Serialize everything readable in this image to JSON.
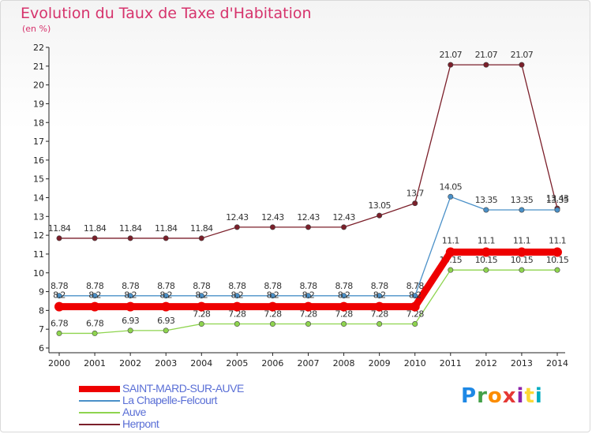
{
  "title": "Evolution du Taux de Taxe d'Habitation",
  "subtitle": "(en %)",
  "logo": {
    "text": "Proxiti",
    "colors": [
      "#1e88e5",
      "#43a047",
      "#fb8c00",
      "#e53935",
      "#8e24aa",
      "#fdd835",
      "#00acc1"
    ]
  },
  "chart_data": {
    "type": "line",
    "x": [
      2000,
      2001,
      2002,
      2003,
      2004,
      2005,
      2006,
      2007,
      2008,
      2009,
      2010,
      2011,
      2012,
      2013,
      2014
    ],
    "ylim": [
      6,
      22
    ],
    "yticks": [
      6,
      7,
      8,
      9,
      10,
      11,
      12,
      13,
      14,
      15,
      16,
      17,
      18,
      19,
      20,
      21,
      22
    ],
    "grid": false,
    "legend": "bottom-left",
    "series": [
      {
        "name": "Herpont",
        "color": "#7b1f2a",
        "width": 1.3,
        "values": [
          11.84,
          11.84,
          11.84,
          11.84,
          11.84,
          12.43,
          12.43,
          12.43,
          12.43,
          13.05,
          13.7,
          21.07,
          21.07,
          21.07,
          13.43
        ],
        "labels": [
          "11.84",
          "11.84",
          "11.84",
          "11.84",
          "11.84",
          "12.43",
          "12.43",
          "12.43",
          "12.43",
          "13.05",
          "13.7",
          "21.07",
          "21.07",
          "21.07",
          "13.43"
        ]
      },
      {
        "name": "La Chapelle-Felcourt",
        "color": "#4a90c8",
        "width": 1.3,
        "values": [
          8.78,
          8.78,
          8.78,
          8.78,
          8.78,
          8.78,
          8.78,
          8.78,
          8.78,
          8.78,
          8.78,
          14.05,
          13.35,
          13.35,
          13.35
        ],
        "labels": [
          "8.78",
          "8.78",
          "8.78",
          "8.78",
          "8.78",
          "8.78",
          "8.78",
          "8.78",
          "8.78",
          "8.78",
          "8.78",
          "14.05",
          "13.35",
          "13.35",
          "13.35"
        ]
      },
      {
        "name": "Auve",
        "color": "#8ed44e",
        "width": 1.3,
        "values": [
          6.78,
          6.78,
          6.93,
          6.93,
          7.28,
          7.28,
          7.28,
          7.28,
          7.28,
          7.28,
          7.28,
          10.15,
          10.15,
          10.15,
          10.15
        ],
        "labels": [
          "6.78",
          "6.78",
          "6.93",
          "6.93",
          "7.28",
          "7.28",
          "7.28",
          "7.28",
          "7.28",
          "7.28",
          "7.28",
          "10.15",
          "10.15",
          "10.15",
          "10.15"
        ]
      },
      {
        "name": "SAINT-MARD-SUR-AUVE",
        "color": "#ee0000",
        "width": 9,
        "values": [
          8.2,
          8.2,
          8.2,
          8.2,
          8.2,
          8.2,
          8.2,
          8.2,
          8.2,
          8.2,
          8.2,
          11.1,
          11.1,
          11.1,
          11.1
        ],
        "labels": [
          "8.2",
          "8.2",
          "8.2",
          "8.2",
          "8.2",
          "8.2",
          "8.2",
          "8.2",
          "8.2",
          "8.2",
          "8.2",
          "11.1",
          "11.1",
          "11.1",
          "11.1"
        ]
      }
    ]
  },
  "legend_order": [
    3,
    1,
    2,
    0
  ]
}
